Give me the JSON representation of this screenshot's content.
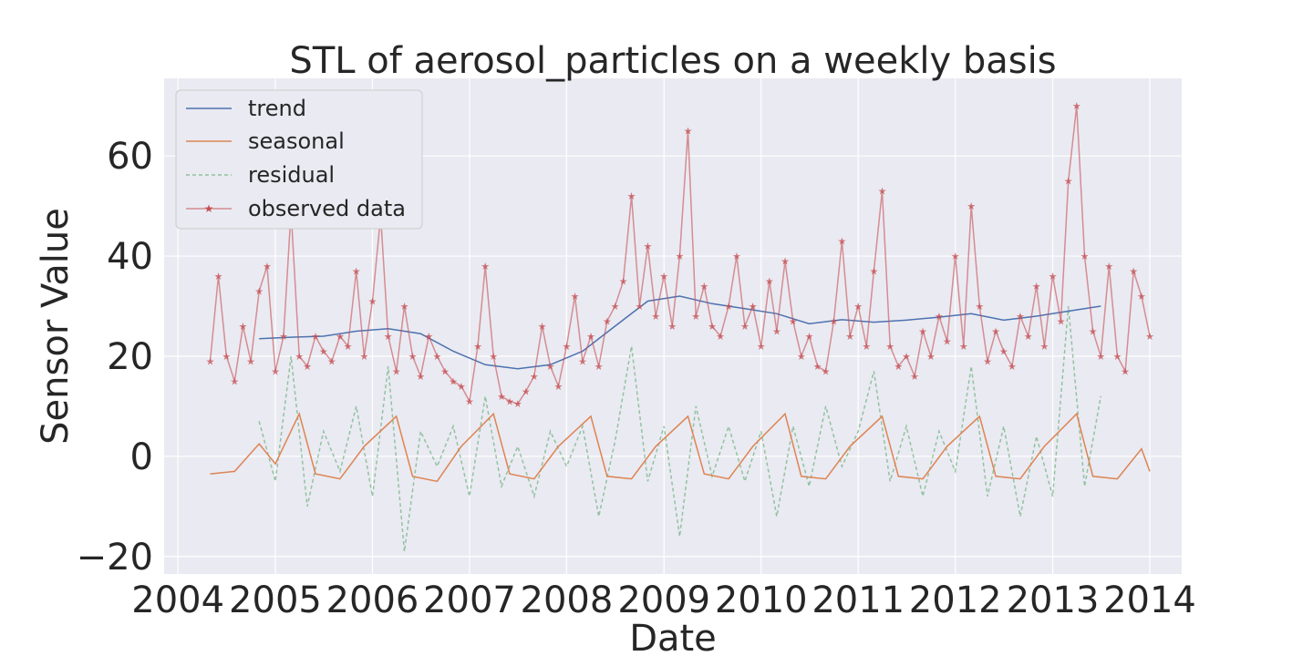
{
  "chart_data": {
    "type": "line",
    "title": "STL of aerosol_particles on a weekly basis",
    "xlabel": "Date",
    "ylabel": "Sensor Value",
    "x_axis": "date",
    "xlim": [
      "2003-11-10",
      "2014-05-01"
    ],
    "ylim": [
      -23.5,
      75.5
    ],
    "x_ticks": [
      {
        "date": "2004-01-01",
        "label": "2004"
      },
      {
        "date": "2005-01-01",
        "label": "2005"
      },
      {
        "date": "2006-01-01",
        "label": "2006"
      },
      {
        "date": "2007-01-01",
        "label": "2007"
      },
      {
        "date": "2008-01-01",
        "label": "2008"
      },
      {
        "date": "2009-01-01",
        "label": "2009"
      },
      {
        "date": "2010-01-01",
        "label": "2010"
      },
      {
        "date": "2011-01-01",
        "label": "2011"
      },
      {
        "date": "2012-01-01",
        "label": "2012"
      },
      {
        "date": "2013-01-01",
        "label": "2013"
      },
      {
        "date": "2014-01-01",
        "label": "2014"
      }
    ],
    "y_ticks": [
      {
        "value": -20,
        "label": "−20"
      },
      {
        "value": 0,
        "label": "0"
      },
      {
        "value": 20,
        "label": "20"
      },
      {
        "value": 40,
        "label": "40"
      },
      {
        "value": 60,
        "label": "60"
      }
    ],
    "grid": true,
    "background": "#eaeaf2",
    "legend_position": "top-left",
    "series": [
      {
        "name": "trend",
        "color": "#4c72b0",
        "style": "solid",
        "points": [
          [
            "2004-11-01",
            23.5
          ],
          [
            "2005-03-01",
            23.8
          ],
          [
            "2005-07-01",
            24.0
          ],
          [
            "2005-11-01",
            25.0
          ],
          [
            "2006-03-01",
            25.5
          ],
          [
            "2006-07-01",
            24.5
          ],
          [
            "2006-11-01",
            21.0
          ],
          [
            "2007-03-01",
            18.3
          ],
          [
            "2007-07-01",
            17.5
          ],
          [
            "2007-11-01",
            18.3
          ],
          [
            "2008-03-01",
            21.0
          ],
          [
            "2008-07-01",
            26.0
          ],
          [
            "2008-11-01",
            31.0
          ],
          [
            "2009-03-01",
            32.0
          ],
          [
            "2009-07-01",
            30.5
          ],
          [
            "2009-11-01",
            29.5
          ],
          [
            "2010-03-01",
            28.5
          ],
          [
            "2010-07-01",
            26.5
          ],
          [
            "2010-11-01",
            27.3
          ],
          [
            "2011-03-01",
            26.8
          ],
          [
            "2011-07-01",
            27.2
          ],
          [
            "2011-11-01",
            27.8
          ],
          [
            "2012-03-01",
            28.5
          ],
          [
            "2012-07-01",
            27.2
          ],
          [
            "2012-11-01",
            28.0
          ],
          [
            "2013-03-01",
            29.0
          ],
          [
            "2013-07-01",
            30.0
          ]
        ]
      },
      {
        "name": "seasonal",
        "color": "#dd8452",
        "style": "solid",
        "points": [
          [
            "2004-05-01",
            -3.5
          ],
          [
            "2004-08-01",
            -3.0
          ],
          [
            "2004-11-01",
            2.5
          ],
          [
            "2005-01-01",
            -1.5
          ],
          [
            "2005-04-01",
            8.5
          ],
          [
            "2005-06-01",
            -3.5
          ],
          [
            "2005-09-01",
            -4.5
          ],
          [
            "2005-12-01",
            2.0
          ],
          [
            "2006-04-01",
            8.0
          ],
          [
            "2006-06-01",
            -4.0
          ],
          [
            "2006-09-01",
            -5.0
          ],
          [
            "2006-12-01",
            2.0
          ],
          [
            "2007-04-01",
            8.5
          ],
          [
            "2007-06-01",
            -3.5
          ],
          [
            "2007-09-01",
            -4.5
          ],
          [
            "2007-12-01",
            2.0
          ],
          [
            "2008-04-01",
            8.0
          ],
          [
            "2008-06-01",
            -4.0
          ],
          [
            "2008-09-01",
            -4.5
          ],
          [
            "2008-12-01",
            2.0
          ],
          [
            "2009-04-01",
            8.0
          ],
          [
            "2009-06-01",
            -3.5
          ],
          [
            "2009-09-01",
            -4.5
          ],
          [
            "2009-12-01",
            2.0
          ],
          [
            "2010-04-01",
            8.5
          ],
          [
            "2010-06-01",
            -4.0
          ],
          [
            "2010-09-01",
            -4.5
          ],
          [
            "2010-12-01",
            2.0
          ],
          [
            "2011-04-01",
            8.0
          ],
          [
            "2011-06-01",
            -4.0
          ],
          [
            "2011-09-01",
            -4.5
          ],
          [
            "2011-12-01",
            2.0
          ],
          [
            "2012-04-01",
            8.0
          ],
          [
            "2012-06-01",
            -4.0
          ],
          [
            "2012-09-01",
            -4.5
          ],
          [
            "2012-12-01",
            2.0
          ],
          [
            "2013-04-01",
            8.5
          ],
          [
            "2013-06-01",
            -4.0
          ],
          [
            "2013-09-01",
            -4.5
          ],
          [
            "2013-12-01",
            1.5
          ],
          [
            "2014-01-01",
            -3.0
          ]
        ]
      },
      {
        "name": "residual",
        "color": "#55a868",
        "style": "dashed",
        "points": [
          [
            "2004-11-01",
            7.0
          ],
          [
            "2005-01-01",
            -5.0
          ],
          [
            "2005-03-01",
            20.0
          ],
          [
            "2005-05-01",
            -10.0
          ],
          [
            "2005-07-01",
            5.0
          ],
          [
            "2005-09-01",
            -3.0
          ],
          [
            "2005-11-01",
            10.0
          ],
          [
            "2006-01-01",
            -8.0
          ],
          [
            "2006-03-01",
            18.0
          ],
          [
            "2006-05-01",
            -19.0
          ],
          [
            "2006-07-01",
            5.0
          ],
          [
            "2006-09-01",
            -2.0
          ],
          [
            "2006-11-01",
            6.0
          ],
          [
            "2007-01-01",
            -8.0
          ],
          [
            "2007-03-01",
            12.0
          ],
          [
            "2007-05-01",
            -6.0
          ],
          [
            "2007-07-01",
            2.0
          ],
          [
            "2007-09-01",
            -8.0
          ],
          [
            "2007-11-01",
            5.0
          ],
          [
            "2008-01-01",
            -2.0
          ],
          [
            "2008-03-01",
            6.0
          ],
          [
            "2008-05-01",
            -12.0
          ],
          [
            "2008-07-01",
            3.0
          ],
          [
            "2008-09-01",
            22.0
          ],
          [
            "2008-11-01",
            -5.0
          ],
          [
            "2009-01-01",
            6.0
          ],
          [
            "2009-03-01",
            -16.0
          ],
          [
            "2009-05-01",
            10.0
          ],
          [
            "2009-07-01",
            -4.0
          ],
          [
            "2009-09-01",
            6.0
          ],
          [
            "2009-11-01",
            -5.0
          ],
          [
            "2010-01-01",
            5.0
          ],
          [
            "2010-03-01",
            -12.0
          ],
          [
            "2010-05-01",
            6.0
          ],
          [
            "2010-07-01",
            -6.0
          ],
          [
            "2010-09-01",
            10.0
          ],
          [
            "2010-11-01",
            -2.0
          ],
          [
            "2011-01-01",
            5.0
          ],
          [
            "2011-03-01",
            17.0
          ],
          [
            "2011-05-01",
            -5.0
          ],
          [
            "2011-07-01",
            6.0
          ],
          [
            "2011-09-01",
            -8.0
          ],
          [
            "2011-11-01",
            5.0
          ],
          [
            "2012-01-01",
            -3.0
          ],
          [
            "2012-03-01",
            18.0
          ],
          [
            "2012-05-01",
            -8.0
          ],
          [
            "2012-07-01",
            6.0
          ],
          [
            "2012-09-01",
            -12.0
          ],
          [
            "2012-11-01",
            4.0
          ],
          [
            "2013-01-01",
            -8.0
          ],
          [
            "2013-03-01",
            30.0
          ],
          [
            "2013-05-01",
            -6.0
          ],
          [
            "2013-07-01",
            12.0
          ]
        ]
      },
      {
        "name": "observed data",
        "color": "#c44e52",
        "style": "solid-star-markers",
        "points": [
          [
            "2004-05-01",
            19.0
          ],
          [
            "2004-06-01",
            36.0
          ],
          [
            "2004-07-01",
            20.0
          ],
          [
            "2004-08-01",
            15.0
          ],
          [
            "2004-09-01",
            26.0
          ],
          [
            "2004-10-01",
            19.0
          ],
          [
            "2004-11-01",
            33.0
          ],
          [
            "2004-12-01",
            38.0
          ],
          [
            "2005-01-01",
            17.0
          ],
          [
            "2005-02-01",
            24.0
          ],
          [
            "2005-03-01",
            49.0
          ],
          [
            "2005-04-01",
            20.0
          ],
          [
            "2005-05-01",
            18.0
          ],
          [
            "2005-06-01",
            24.0
          ],
          [
            "2005-07-01",
            21.0
          ],
          [
            "2005-08-01",
            19.0
          ],
          [
            "2005-09-01",
            24.0
          ],
          [
            "2005-10-01",
            22.0
          ],
          [
            "2005-11-01",
            37.0
          ],
          [
            "2005-12-01",
            20.0
          ],
          [
            "2006-01-01",
            31.0
          ],
          [
            "2006-02-01",
            48.0
          ],
          [
            "2006-03-01",
            24.0
          ],
          [
            "2006-04-01",
            17.0
          ],
          [
            "2006-05-01",
            30.0
          ],
          [
            "2006-06-01",
            20.0
          ],
          [
            "2006-07-01",
            16.0
          ],
          [
            "2006-08-01",
            24.0
          ],
          [
            "2006-09-01",
            20.0
          ],
          [
            "2006-10-01",
            17.0
          ],
          [
            "2006-11-01",
            15.0
          ],
          [
            "2006-12-01",
            14.0
          ],
          [
            "2007-01-01",
            11.0
          ],
          [
            "2007-02-01",
            22.0
          ],
          [
            "2007-03-01",
            38.0
          ],
          [
            "2007-04-01",
            20.0
          ],
          [
            "2007-05-01",
            12.0
          ],
          [
            "2007-06-01",
            11.0
          ],
          [
            "2007-07-01",
            10.5
          ],
          [
            "2007-08-01",
            13.0
          ],
          [
            "2007-09-01",
            16.0
          ],
          [
            "2007-10-01",
            26.0
          ],
          [
            "2007-11-01",
            18.0
          ],
          [
            "2007-12-01",
            14.0
          ],
          [
            "2008-01-01",
            22.0
          ],
          [
            "2008-02-01",
            32.0
          ],
          [
            "2008-03-01",
            19.0
          ],
          [
            "2008-04-01",
            24.0
          ],
          [
            "2008-05-01",
            18.0
          ],
          [
            "2008-06-01",
            27.0
          ],
          [
            "2008-07-01",
            30.0
          ],
          [
            "2008-08-01",
            35.0
          ],
          [
            "2008-09-01",
            52.0
          ],
          [
            "2008-10-01",
            30.0
          ],
          [
            "2008-11-01",
            42.0
          ],
          [
            "2008-12-01",
            28.0
          ],
          [
            "2009-01-01",
            36.0
          ],
          [
            "2009-02-01",
            26.0
          ],
          [
            "2009-03-01",
            40.0
          ],
          [
            "2009-04-01",
            65.0
          ],
          [
            "2009-05-01",
            28.0
          ],
          [
            "2009-06-01",
            34.0
          ],
          [
            "2009-07-01",
            26.0
          ],
          [
            "2009-08-01",
            24.0
          ],
          [
            "2009-09-01",
            30.0
          ],
          [
            "2009-10-01",
            40.0
          ],
          [
            "2009-11-01",
            26.0
          ],
          [
            "2009-12-01",
            30.0
          ],
          [
            "2010-01-01",
            22.0
          ],
          [
            "2010-02-01",
            35.0
          ],
          [
            "2010-03-01",
            25.0
          ],
          [
            "2010-04-01",
            39.0
          ],
          [
            "2010-05-01",
            27.0
          ],
          [
            "2010-06-01",
            20.0
          ],
          [
            "2010-07-01",
            24.0
          ],
          [
            "2010-08-01",
            18.0
          ],
          [
            "2010-09-01",
            17.0
          ],
          [
            "2010-10-01",
            27.0
          ],
          [
            "2010-11-01",
            43.0
          ],
          [
            "2010-12-01",
            24.0
          ],
          [
            "2011-01-01",
            30.0
          ],
          [
            "2011-02-01",
            22.0
          ],
          [
            "2011-03-01",
            37.0
          ],
          [
            "2011-04-01",
            53.0
          ],
          [
            "2011-05-01",
            22.0
          ],
          [
            "2011-06-01",
            18.0
          ],
          [
            "2011-07-01",
            20.0
          ],
          [
            "2011-08-01",
            16.0
          ],
          [
            "2011-09-01",
            25.0
          ],
          [
            "2011-10-01",
            20.0
          ],
          [
            "2011-11-01",
            28.0
          ],
          [
            "2011-12-01",
            23.0
          ],
          [
            "2012-01-01",
            40.0
          ],
          [
            "2012-02-01",
            22.0
          ],
          [
            "2012-03-01",
            50.0
          ],
          [
            "2012-04-01",
            30.0
          ],
          [
            "2012-05-01",
            19.0
          ],
          [
            "2012-06-01",
            25.0
          ],
          [
            "2012-07-01",
            21.0
          ],
          [
            "2012-08-01",
            18.0
          ],
          [
            "2012-09-01",
            28.0
          ],
          [
            "2012-10-01",
            24.0
          ],
          [
            "2012-11-01",
            34.0
          ],
          [
            "2012-12-01",
            22.0
          ],
          [
            "2013-01-01",
            36.0
          ],
          [
            "2013-02-01",
            27.0
          ],
          [
            "2013-03-01",
            55.0
          ],
          [
            "2013-04-01",
            70.0
          ],
          [
            "2013-05-01",
            40.0
          ],
          [
            "2013-06-01",
            25.0
          ],
          [
            "2013-07-01",
            20.0
          ],
          [
            "2013-08-01",
            38.0
          ],
          [
            "2013-09-01",
            20.0
          ],
          [
            "2013-10-01",
            17.0
          ],
          [
            "2013-11-01",
            37.0
          ],
          [
            "2013-12-01",
            32.0
          ],
          [
            "2014-01-01",
            24.0
          ]
        ]
      }
    ]
  }
}
